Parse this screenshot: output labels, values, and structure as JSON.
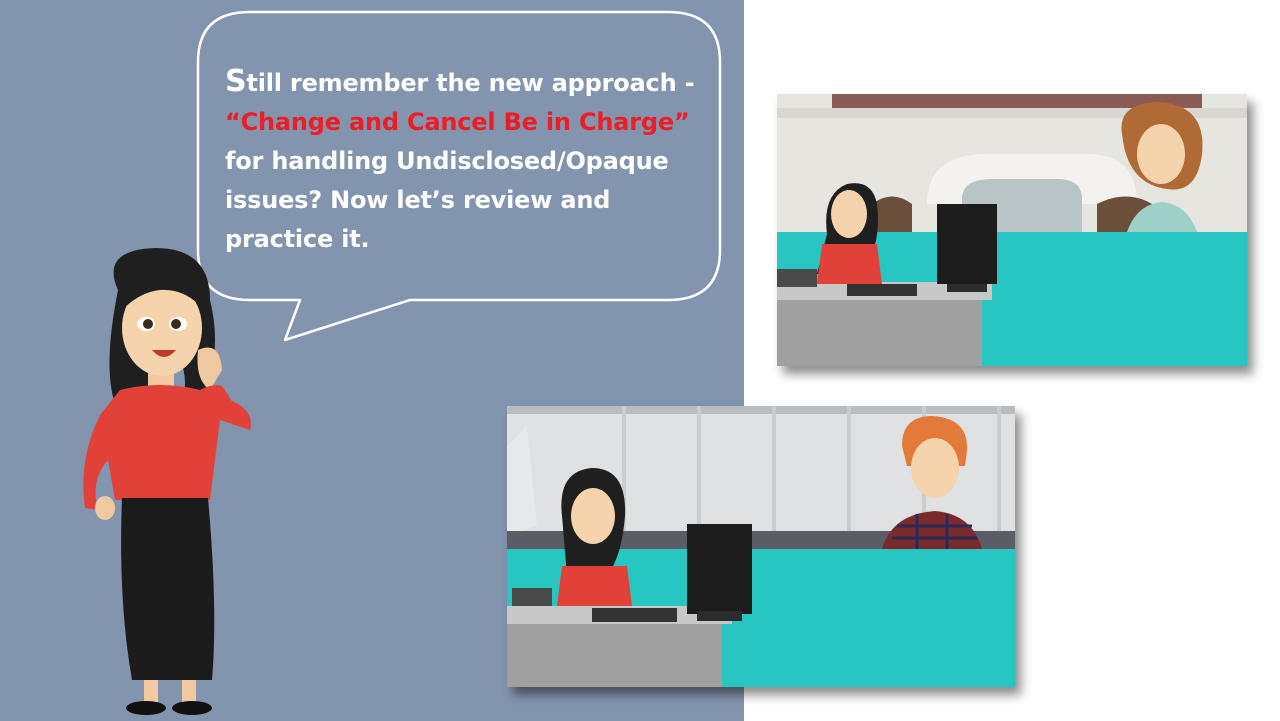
{
  "slide": {
    "bubble": {
      "line1_first_letter": "S",
      "line1_rest": "till remember the new approach -",
      "line2_highlight": "“Change and Cancel Be in Charge”",
      "line3": "for handling Undisclosed/Opaque",
      "line4": "issues? Now let’s review and",
      "line5": "practice it."
    },
    "colors": {
      "left_panel": "#8394ae",
      "highlight_text": "#ee1c24",
      "teal_desk": "#27c6c3",
      "red_shirt": "#e2413a"
    },
    "images": {
      "presenter": "presenter-character",
      "scene_one": "hotel-front-desk-with-guest-scene",
      "scene_two": "office-desk-with-guest-scene"
    }
  }
}
